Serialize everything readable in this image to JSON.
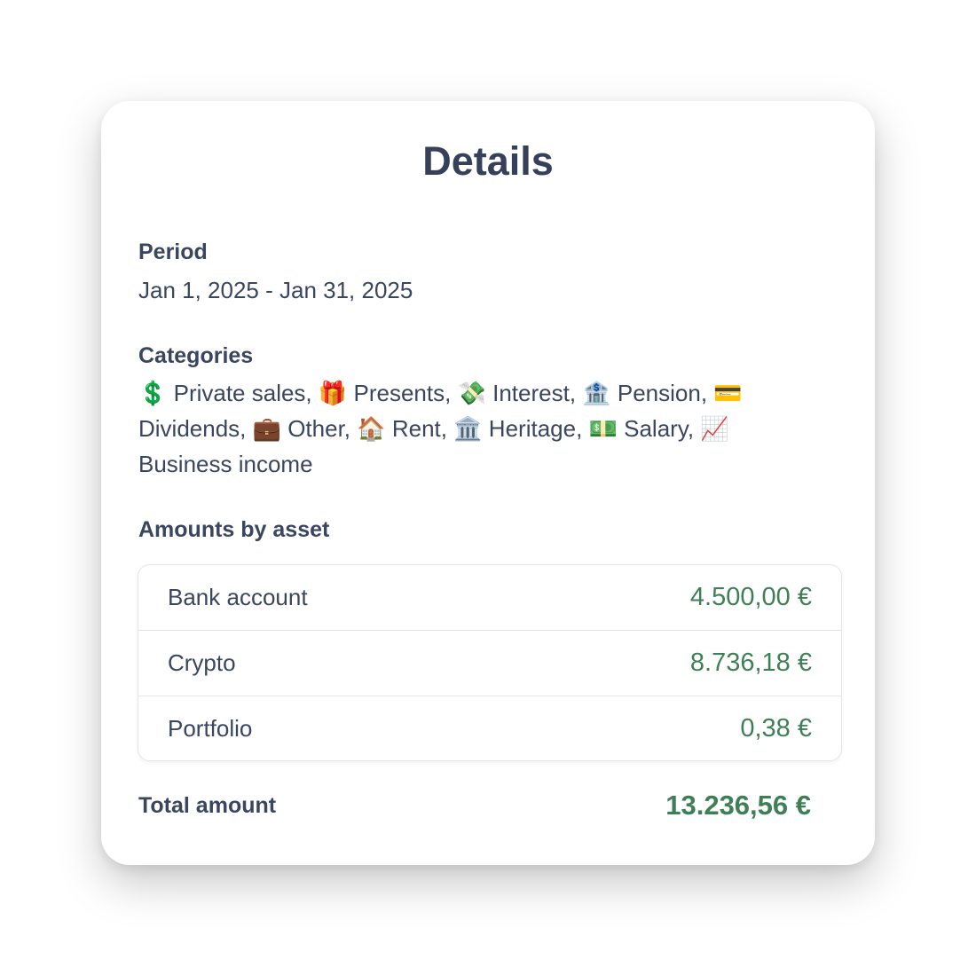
{
  "title": "Details",
  "period": {
    "label": "Period",
    "value": "Jan 1, 2025 - Jan 31, 2025"
  },
  "categories": {
    "label": "Categories",
    "value": "💲 Private sales, 🎁 Presents, 💸 Interest, 🏦 Pension, 💳 Dividends, 💼 Other, 🏠 Rent, 🏛️  Heritage, 💵 Salary, 📈 Business income"
  },
  "assets": {
    "label": "Amounts by asset",
    "rows": [
      {
        "name": "Bank account",
        "amount": "4.500,00 €"
      },
      {
        "name": "Crypto",
        "amount": "8.736,18 €"
      },
      {
        "name": "Portfolio",
        "amount": "0,38 €"
      }
    ]
  },
  "total": {
    "label": "Total amount",
    "value": "13.236,56 €"
  },
  "colors": {
    "amount": "#3f7f57",
    "text": "#3a4560"
  }
}
